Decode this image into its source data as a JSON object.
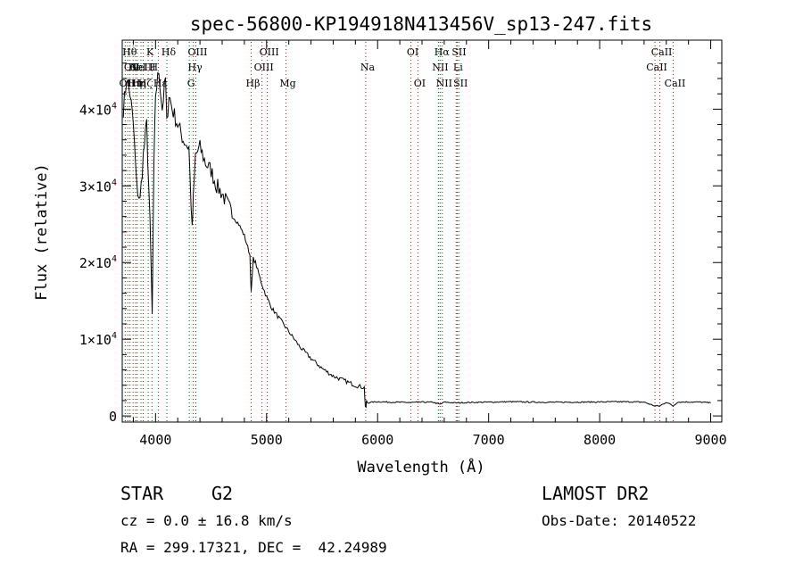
{
  "chart_data": {
    "type": "line",
    "title": "spec-56800-KP194918N413456V_sp13-247.fits",
    "xlabel": "Wavelength (Å)",
    "ylabel": "Flux (relative)",
    "xlim": [
      3700,
      9100
    ],
    "ylim": [
      -800,
      49000
    ],
    "x_ticks": [
      4000,
      5000,
      6000,
      7000,
      8000,
      9000
    ],
    "x_tick_labels": [
      "4000",
      "5000",
      "6000",
      "7000",
      "8000",
      "9000"
    ],
    "y_ticks": [
      0,
      10000,
      20000,
      30000,
      40000
    ],
    "y_tick_labels": [
      {
        "base": "0",
        "exp": ""
      },
      {
        "base": "1×10",
        "exp": "4"
      },
      {
        "base": "2×10",
        "exp": "4"
      },
      {
        "base": "3×10",
        "exp": "4"
      },
      {
        "base": "4×10",
        "exp": "4"
      }
    ],
    "series": [
      {
        "color": "#000000",
        "x": [
          3710,
          3740,
          3770,
          3800,
          3830,
          3860,
          3890,
          3920,
          3950,
          3970,
          3985,
          4000,
          4030,
          4060,
          4090,
          4101,
          4120,
          4150,
          4200,
          4250,
          4300,
          4330,
          4340,
          4360,
          4400,
          4450,
          4500,
          4550,
          4600,
          4650,
          4700,
          4750,
          4800,
          4850,
          4861,
          4880,
          4900,
          4950,
          5000,
          5050,
          5100,
          5150,
          5200,
          5250,
          5300,
          5400,
          5500,
          5600,
          5700,
          5800,
          5850,
          5880,
          5890,
          5895,
          5900,
          5910,
          5950,
          6000,
          6100,
          6200,
          6300,
          6400,
          6500,
          6563,
          6600,
          6700,
          6800,
          6900,
          7000,
          7200,
          7400,
          7600,
          7800,
          8000,
          8200,
          8400,
          8498,
          8542,
          8600,
          8662,
          8700,
          8800,
          8900,
          8950,
          9000
        ],
        "y": [
          40000,
          44000,
          42000,
          38000,
          30000,
          28000,
          34000,
          38000,
          25000,
          13000,
          32000,
          42000,
          45000,
          40000,
          44000,
          38000,
          42000,
          40000,
          38000,
          36000,
          35000,
          24000,
          28000,
          34000,
          35000,
          33000,
          32000,
          30000,
          29000,
          27500,
          26000,
          25000,
          23500,
          21000,
          16000,
          20500,
          20000,
          17500,
          15500,
          14000,
          13000,
          12000,
          11000,
          10000,
          9000,
          7500,
          6200,
          5200,
          4600,
          4000,
          3800,
          3700,
          1200,
          1100,
          2000,
          1700,
          1800,
          1850,
          1800,
          1780,
          1750,
          1800,
          1780,
          1500,
          1800,
          1700,
          1750,
          1780,
          1800,
          1850,
          1800,
          1780,
          1800,
          1820,
          1850,
          1800,
          1300,
          1300,
          1800,
          1300,
          1800,
          1820,
          1800,
          1760,
          1700
        ]
      }
    ],
    "spectral_lines": [
      {
        "wavelength": 3727,
        "label": "OII",
        "row": 3
      },
      {
        "wavelength": 3750,
        "label": "Hθ",
        "row": 1
      },
      {
        "wavelength": 3770,
        "label": "OII",
        "row": 2
      },
      {
        "wavelength": 3798,
        "label": "Hη",
        "row": 3
      },
      {
        "wavelength": 3820,
        "label": "HeI",
        "row": 2
      },
      {
        "wavelength": 3835,
        "label": "Hη",
        "row": 3
      },
      {
        "wavelength": 3869,
        "label": "NeIII",
        "row": 2
      },
      {
        "wavelength": 3889,
        "label": "Hζ",
        "row": 3
      },
      {
        "wavelength": 3934,
        "label": "K",
        "row": 1
      },
      {
        "wavelength": 3968,
        "label": "H",
        "row": 2
      },
      {
        "wavelength": 4026,
        "label": "Hε",
        "row": 3
      },
      {
        "wavelength": 4102,
        "label": "Hδ",
        "row": 1
      },
      {
        "wavelength": 4340,
        "label": "Hγ",
        "row": 2
      },
      {
        "wavelength": 4304,
        "label": "G",
        "row": 3
      },
      {
        "wavelength": 4363,
        "label": "OIII",
        "row": 1
      },
      {
        "wavelength": 4861,
        "label": "Hβ",
        "row": 3
      },
      {
        "wavelength": 4959,
        "label": "OIII",
        "row": 2
      },
      {
        "wavelength": 5007,
        "label": "OIII",
        "row": 1
      },
      {
        "wavelength": 5175,
        "label": "Mg",
        "row": 3
      },
      {
        "wavelength": 5893,
        "label": "Na",
        "row": 2
      },
      {
        "wavelength": 6300,
        "label": "OI",
        "row": 1
      },
      {
        "wavelength": 6363,
        "label": "OI",
        "row": 3
      },
      {
        "wavelength": 6548,
        "label": "NII",
        "row": 2
      },
      {
        "wavelength": 6583,
        "label": "NII",
        "row": 3
      },
      {
        "wavelength": 6563,
        "label": "Hα",
        "row": 1
      },
      {
        "wavelength": 6708,
        "label": "Li",
        "row": 2
      },
      {
        "wavelength": 6717,
        "label": "SII",
        "row": 1
      },
      {
        "wavelength": 6731,
        "label": "SII",
        "row": 3
      },
      {
        "wavelength": 8498,
        "label": "CaII",
        "row": 2
      },
      {
        "wavelength": 8542,
        "label": "CaII",
        "row": 1
      },
      {
        "wavelength": 8662,
        "label": "CaII",
        "row": 3
      }
    ],
    "line_marker_color": "#cc0000",
    "grid": false
  },
  "info": {
    "object_class": "STAR",
    "subclass": "G2",
    "survey": "LAMOST DR2",
    "redshift": "cz = 0.0 ± 16.8 km/s",
    "obs_date": "Obs-Date: 20140522",
    "coords": "RA = 299.17321, DEC =  42.24989"
  }
}
